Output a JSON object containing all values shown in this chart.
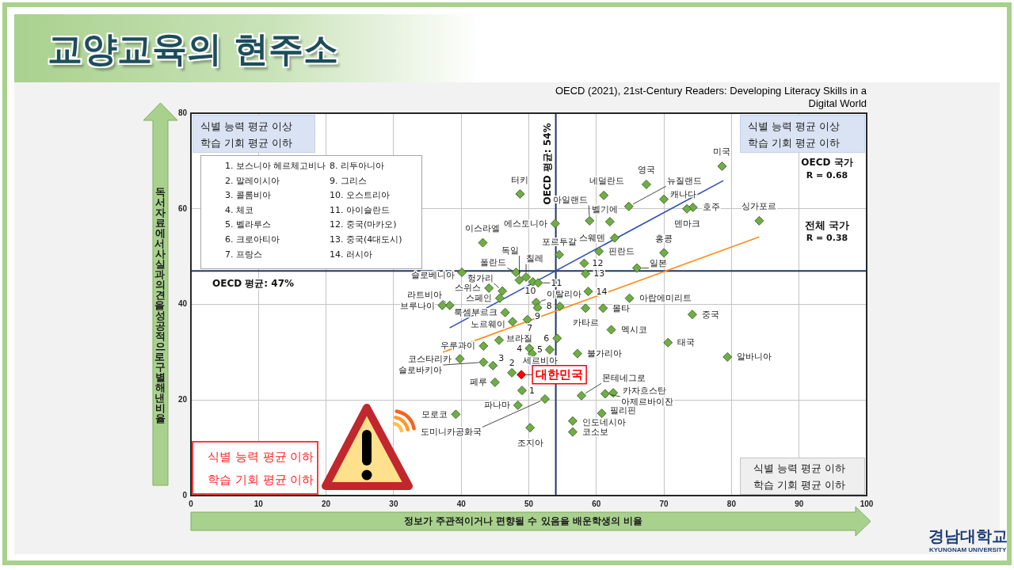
{
  "chart_data": {
    "type": "scatter",
    "title": "교양교육의 현주소",
    "xlabel": "정보가 주관적이거나 편향될 수 있음을 배운학생의 비율",
    "ylabel": "독서자료에서 사실과 의견을 성공적으로 구별해낸 비율",
    "xlim": [
      0,
      100
    ],
    "xticks": [
      0,
      10,
      20,
      30,
      40,
      50,
      60,
      70,
      80,
      90,
      100
    ],
    "ylim": [
      0,
      80
    ],
    "yticks": [
      0,
      20,
      40,
      60,
      80
    ],
    "grid": true,
    "marker": "diamond",
    "series": [
      {
        "color": "#70ad47",
        "x": [
          78.6,
          67.4,
          61.1,
          48.7,
          64.8,
          70.0,
          74.3,
          73.4,
          84.1,
          59.0,
          62.0,
          53.9,
          43.2,
          62.7,
          54.5,
          60.4,
          58.2,
          58.4,
          58.8,
          70.0,
          66.0,
          48.6,
          48.1,
          49.6,
          50.6,
          51.4,
          40.1,
          46.1,
          44.1,
          45.7,
          64.9,
          38.3,
          37.2,
          51.1,
          51.3,
          54.6,
          58.4,
          61.0,
          46.5,
          47.6,
          49.8,
          62.2,
          54.2,
          45.6,
          43.3,
          50.1,
          50.5,
          53.1,
          57.2,
          39.8,
          43.3,
          44.7,
          47.5,
          48.9,
          45.0,
          49.0,
          57.8,
          62.5,
          61.3,
          52.4,
          48.4,
          39.2,
          60.8,
          56.5,
          56.5,
          50.2,
          74.2,
          70.6,
          79.4
        ],
        "values": [
          68.9,
          65.1,
          62.8,
          63.1,
          60.5,
          62.0,
          60.3,
          60.0,
          57.5,
          57.5,
          57.3,
          56.9,
          52.9,
          53.9,
          50.4,
          51.1,
          48.6,
          46.4,
          42.7,
          50.8,
          47.6,
          45.1,
          46.7,
          45.7,
          44.7,
          44.5,
          46.7,
          42.8,
          43.4,
          41.3,
          41.3,
          39.8,
          39.8,
          40.4,
          39.3,
          39.6,
          39.2,
          39.2,
          38.3,
          36.4,
          36.8,
          34.7,
          32.9,
          32.5,
          31.3,
          30.8,
          29.7,
          30.5,
          29.7,
          28.6,
          27.9,
          27.2,
          25.7,
          25.3,
          23.7,
          22.0,
          20.9,
          21.5,
          21.3,
          20.2,
          18.9,
          17.0,
          17.2,
          15.6,
          13.3,
          14.2,
          37.9,
          32.0,
          29.0
        ],
        "colors": [
          "#70ad47",
          "#70ad47",
          "#70ad47",
          "#70ad47",
          "#70ad47",
          "#70ad47",
          "#70ad47",
          "#70ad47",
          "#70ad47",
          "#70ad47",
          "#70ad47",
          "#70ad47",
          "#70ad47",
          "#70ad47",
          "#70ad47",
          "#70ad47",
          "#70ad47",
          "#70ad47",
          "#70ad47",
          "#70ad47",
          "#70ad47",
          "#70ad47",
          "#70ad47",
          "#70ad47",
          "#70ad47",
          "#70ad47",
          "#70ad47",
          "#70ad47",
          "#70ad47",
          "#70ad47",
          "#70ad47",
          "#70ad47",
          "#70ad47",
          "#70ad47",
          "#70ad47",
          "#70ad47",
          "#70ad47",
          "#70ad47",
          "#70ad47",
          "#70ad47",
          "#70ad47",
          "#70ad47",
          "#70ad47",
          "#70ad47",
          "#70ad47",
          "#70ad47",
          "#70ad47",
          "#70ad47",
          "#70ad47",
          "#70ad47",
          "#70ad47",
          "#70ad47",
          "#70ad47",
          "#ff0000",
          "#70ad47",
          "#70ad47",
          "#70ad47",
          "#70ad47",
          "#70ad47",
          "#70ad47",
          "#70ad47",
          "#70ad47",
          "#70ad47",
          "#70ad47",
          "#70ad47",
          "#70ad47",
          "#70ad47",
          "#70ad47",
          "#70ad47"
        ]
      },
      {
        "type": "line",
        "color": "#2f4fb5",
        "marker": "none",
        "x": [
          38.3,
          78.8
        ],
        "values": [
          35.1,
          65.9
        ]
      },
      {
        "type": "line",
        "color": "#ff8c1a",
        "marker": "none",
        "x": [
          37.3,
          84.1
        ],
        "values": [
          30.0,
          54.1
        ]
      }
    ],
    "ref_lines": [
      {
        "axis": "x",
        "value": 54,
        "label": "OECD 평균: 54%",
        "color": "#203864"
      },
      {
        "axis": "y",
        "value": 47,
        "label": "OECD 평균: 47%",
        "color": "#203864"
      }
    ],
    "annotations": [
      {
        "text": "미국",
        "x": 78.6,
        "y": 68.9
      },
      {
        "text": "영국",
        "x": 67.4,
        "y": 65.1
      },
      {
        "text": "네덜란드",
        "x": 61.1,
        "y": 62.8
      },
      {
        "text": "터키",
        "x": 48.7,
        "y": 63.1
      },
      {
        "text": "뉴질랜드",
        "x": 64.8,
        "y": 60.5
      },
      {
        "text": "캐나다",
        "x": 70.0,
        "y": 62.0
      },
      {
        "text": "호주",
        "x": 74.3,
        "y": 60.3
      },
      {
        "text": "덴마크",
        "x": 73.4,
        "y": 60.0
      },
      {
        "text": "싱가포르",
        "x": 84.1,
        "y": 57.5
      },
      {
        "text": "아일랜드",
        "x": 59.0,
        "y": 57.5
      },
      {
        "text": "벨기에",
        "x": 62.0,
        "y": 57.3
      },
      {
        "text": "에스토니아",
        "x": 53.9,
        "y": 56.9
      },
      {
        "text": "이스라엘",
        "x": 43.2,
        "y": 52.9
      },
      {
        "text": "스웨덴",
        "x": 62.7,
        "y": 53.9
      },
      {
        "text": "포르투갈",
        "x": 54.5,
        "y": 50.4
      },
      {
        "text": "핀란드",
        "x": 60.4,
        "y": 51.1
      },
      {
        "text": "12",
        "x": 58.2,
        "y": 48.6
      },
      {
        "text": "13",
        "x": 58.4,
        "y": 46.4
      },
      {
        "text": "14",
        "x": 58.8,
        "y": 42.7
      },
      {
        "text": "홍콩",
        "x": 70.0,
        "y": 50.8
      },
      {
        "text": "일본",
        "x": 66.0,
        "y": 47.6
      },
      {
        "text": "독일",
        "x": 48.6,
        "y": 45.1
      },
      {
        "text": "폴란드",
        "x": 48.1,
        "y": 46.7
      },
      {
        "text": "칠레",
        "x": 49.6,
        "y": 45.7
      },
      {
        "text": "10",
        "x": 50.6,
        "y": 44.7
      },
      {
        "text": "11",
        "x": 51.4,
        "y": 44.5
      },
      {
        "text": "슬로베니아",
        "x": 40.1,
        "y": 46.7
      },
      {
        "text": "헝가리",
        "x": 46.1,
        "y": 42.8
      },
      {
        "text": "스위스",
        "x": 44.1,
        "y": 43.4
      },
      {
        "text": "스페인",
        "x": 45.7,
        "y": 41.3
      },
      {
        "text": "아랍에미리트",
        "x": 64.9,
        "y": 41.3
      },
      {
        "text": "라트비아",
        "x": 38.3,
        "y": 39.8
      },
      {
        "text": "브루나이",
        "x": 37.2,
        "y": 39.8
      },
      {
        "text": "이탈리아",
        "x": 51.1,
        "y": 40.4
      },
      {
        "text": "9",
        "x": 51.3,
        "y": 39.3
      },
      {
        "text": "8",
        "x": 54.6,
        "y": 39.6
      },
      {
        "text": "카타르",
        "x": 58.4,
        "y": 39.2
      },
      {
        "text": "몰타",
        "x": 61.0,
        "y": 39.2
      },
      {
        "text": "룩셈부르크",
        "x": 46.5,
        "y": 38.3
      },
      {
        "text": "노르웨이",
        "x": 47.6,
        "y": 36.4
      },
      {
        "text": "7",
        "x": 49.8,
        "y": 36.8
      },
      {
        "text": "멕시코",
        "x": 62.2,
        "y": 34.7
      },
      {
        "text": "6",
        "x": 54.2,
        "y": 32.9
      },
      {
        "text": "브라질",
        "x": 45.6,
        "y": 32.5
      },
      {
        "text": "우루과이",
        "x": 43.3,
        "y": 31.3
      },
      {
        "text": "4",
        "x": 50.1,
        "y": 30.8
      },
      {
        "text": "세르비아",
        "x": 50.5,
        "y": 29.7
      },
      {
        "text": "5",
        "x": 53.1,
        "y": 30.5
      },
      {
        "text": "불가리아",
        "x": 57.2,
        "y": 29.7
      },
      {
        "text": "코스타리카",
        "x": 39.8,
        "y": 28.6
      },
      {
        "text": "슬로바키아",
        "x": 43.3,
        "y": 27.9
      },
      {
        "text": "3",
        "x": 44.7,
        "y": 27.2
      },
      {
        "text": "2",
        "x": 47.5,
        "y": 25.7
      },
      {
        "text": "대한민국",
        "x": 48.9,
        "y": 25.3
      },
      {
        "text": "페루",
        "x": 45.0,
        "y": 23.7
      },
      {
        "text": "1",
        "x": 49.0,
        "y": 22.0
      },
      {
        "text": "몬테네그로",
        "x": 57.8,
        "y": 20.9
      },
      {
        "text": "카자흐스탄",
        "x": 62.5,
        "y": 21.5
      },
      {
        "text": "아제르바이잔",
        "x": 61.3,
        "y": 21.3
      },
      {
        "text": "도미니카공화국",
        "x": 52.4,
        "y": 20.2
      },
      {
        "text": "파나마",
        "x": 48.4,
        "y": 18.9
      },
      {
        "text": "모로코",
        "x": 39.2,
        "y": 17.0
      },
      {
        "text": "필리핀",
        "x": 60.8,
        "y": 17.2
      },
      {
        "text": "인도네시아",
        "x": 56.5,
        "y": 15.6
      },
      {
        "text": "코소보",
        "x": 56.5,
        "y": 13.3
      },
      {
        "text": "조지아",
        "x": 50.2,
        "y": 14.2
      },
      {
        "text": "중국",
        "x": 74.2,
        "y": 37.9
      },
      {
        "text": "태국",
        "x": 70.6,
        "y": 32.0
      },
      {
        "text": "알바니아",
        "x": 79.4,
        "y": 29.0
      },
      "OECD (2021), 21st-Century Readers: Developing Literacy Skills in a Digital World",
      "식별 능력 평균 이상",
      "학습 기회 평균 이하",
      "식별 능력 평균 이상",
      "학습 기회 평균 이하",
      "식별 능력 평균 이하",
      "학습 기회 평균 이하",
      "식별 능력 평균 이하",
      "학습 기회 평균 이하",
      "OECD 국가",
      "R = 0.68",
      "전체 국가",
      "R = 0.38",
      "1. 보스니아 헤르체고비나",
      "2. 말레이시아",
      "3. 콜롬비아",
      "4. 체코",
      "5. 벨라루스",
      "6. 크로아티아",
      "7. 프랑스",
      "8. 리투아니아",
      "9. 그리스",
      "10. 오스트리아",
      "11. 아이슬란드",
      "12. 중국(마카오)",
      "13. 중국(4대도시)",
      "14. 러시아",
      "경남대학교",
      "KYUNGNAM UNIVERSITY"
    ]
  }
}
